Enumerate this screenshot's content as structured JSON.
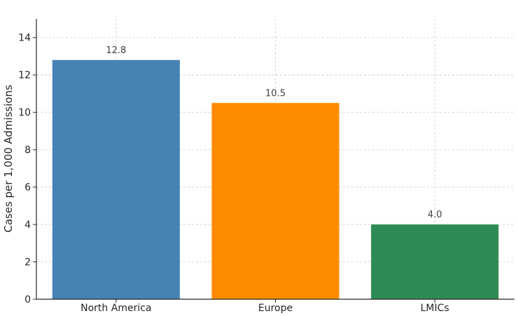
{
  "chart_data": {
    "type": "bar",
    "categories": [
      "North America",
      "Europe",
      "LMICs"
    ],
    "values": [
      12.8,
      10.5,
      4.0
    ],
    "value_labels": [
      "12.8",
      "10.5",
      "4.0"
    ],
    "colors": [
      "#4682b4",
      "#ff8c00",
      "#2e8b57"
    ],
    "title": "",
    "xlabel": "",
    "ylabel": "Cases per 1,000 Admissions",
    "ylim": [
      0,
      15
    ],
    "yticks": [
      0,
      2,
      4,
      6,
      8,
      10,
      12,
      14
    ],
    "grid": true,
    "legend": "none"
  }
}
